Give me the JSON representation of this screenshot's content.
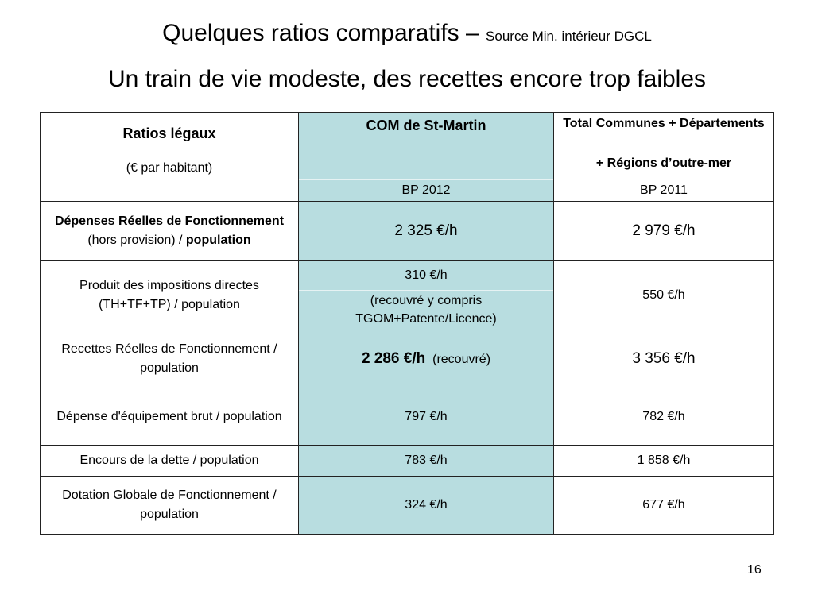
{
  "title": {
    "main": "Quelques ratios comparatifs – ",
    "source": "Source Min. intérieur DGCL",
    "subtitle": "Un train de vie modeste, des recettes encore trop faibles"
  },
  "table": {
    "header": {
      "ratios_title": "Ratios légaux",
      "ratios_unit": "(€ par habitant)",
      "com_title": "COM de St-Martin",
      "com_year": "BP 2012",
      "total_line1": "Total Communes + Départements",
      "total_line2": "+ Régions d’outre-mer",
      "total_year": "BP  2011"
    },
    "rows": {
      "depenses": {
        "label_bold1": "Dépenses Réelles  de Fonctionnement",
        "label_normal": " (hors provision) / ",
        "label_bold2": "population",
        "com": "2 325 €/h",
        "total": "2 979 €/h"
      },
      "produit": {
        "label": "Produit des impositions directes (TH+TF+TP) / population",
        "com": "310 €/h",
        "com_note": "(recouvré y compris TGOM+Patente/Licence)",
        "total": "550 €/h"
      },
      "recettes": {
        "label": "Recettes Réelles de Fonctionnement  / population",
        "com": "2 286 €/h",
        "com_note": "(recouvré)",
        "total": "3 356 €/h"
      },
      "equipement": {
        "label": "Dépense d'équipement brut / population",
        "com": "797 €/h",
        "total": "782 €/h"
      },
      "dette": {
        "label": "Encours de la dette  / population",
        "com": "783 €/h",
        "total": "1 858 €/h"
      },
      "dotation": {
        "label": "Dotation Globale de Fonctionnement / population",
        "com": "324 €/h",
        "total": "677 €/h"
      }
    }
  },
  "page_number": "16",
  "colors": {
    "com_column_fill": "#b8dde0",
    "border": "#222222",
    "background": "#ffffff"
  }
}
